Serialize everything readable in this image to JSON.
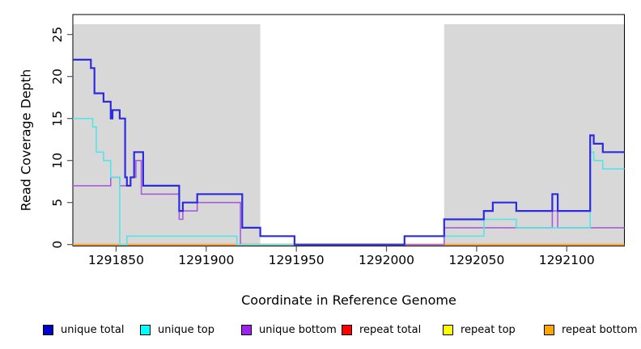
{
  "figure": {
    "xlabel": "Coordinate in Reference Genome",
    "ylabel": "Read Coverage Depth"
  },
  "chart_data": {
    "type": "line",
    "subtype": "step-after",
    "title": "",
    "xlabel": "Coordinate in Reference Genome",
    "ylabel": "Read Coverage Depth",
    "xlim": [
      1291826,
      1292132
    ],
    "ylim": [
      0,
      27
    ],
    "x_ticks": [
      1291850,
      1291900,
      1291950,
      1292000,
      1292050,
      1292100
    ],
    "y_ticks": [
      0,
      5,
      10,
      15,
      20,
      25
    ],
    "grid": false,
    "legend_position": "bottom",
    "shade_color": "#D8D8D8",
    "shaded_regions": [
      {
        "from": 1291826,
        "to": 1291930
      },
      {
        "from": 1292032,
        "to": 1292132
      }
    ],
    "series": [
      {
        "name": "unique total",
        "legend_color": "#0000CD",
        "line_color": "#2B2BE0",
        "width": 2.2,
        "z": 6,
        "steps": [
          [
            1291826,
            22
          ],
          [
            1291836,
            21
          ],
          [
            1291838,
            18
          ],
          [
            1291843,
            17
          ],
          [
            1291847,
            15
          ],
          [
            1291848,
            16
          ],
          [
            1291852,
            15
          ],
          [
            1291855,
            8
          ],
          [
            1291856,
            7
          ],
          [
            1291858,
            8
          ],
          [
            1291860,
            11
          ],
          [
            1291865,
            7
          ],
          [
            1291885,
            4
          ],
          [
            1291887,
            5
          ],
          [
            1291895,
            6
          ],
          [
            1291920,
            2
          ],
          [
            1291930,
            1
          ],
          [
            1291949,
            0
          ],
          [
            1292010,
            1
          ],
          [
            1292032,
            3
          ],
          [
            1292054,
            4
          ],
          [
            1292059,
            5
          ],
          [
            1292072,
            4
          ],
          [
            1292092,
            6
          ],
          [
            1292095,
            4
          ],
          [
            1292113,
            13
          ],
          [
            1292115,
            12
          ],
          [
            1292120,
            11
          ]
        ]
      },
      {
        "name": "unique top",
        "legend_color": "#00FFFF",
        "line_color": "#55E4E8",
        "width": 1.6,
        "z": 5,
        "steps": [
          [
            1291826,
            15
          ],
          [
            1291837,
            14
          ],
          [
            1291839,
            11
          ],
          [
            1291843,
            10
          ],
          [
            1291847,
            8
          ],
          [
            1291852,
            0
          ],
          [
            1291856,
            1
          ],
          [
            1291917,
            0
          ],
          [
            1292010,
            1
          ],
          [
            1292054,
            3
          ],
          [
            1292072,
            2
          ],
          [
            1292113,
            11
          ],
          [
            1292115,
            10
          ],
          [
            1292120,
            9
          ]
        ]
      },
      {
        "name": "unique bottom",
        "legend_color": "#A020F0",
        "line_color": "#A75CD8",
        "width": 1.6,
        "z": 4,
        "steps": [
          [
            1291826,
            7
          ],
          [
            1291847,
            8
          ],
          [
            1291852,
            7
          ],
          [
            1291858,
            8
          ],
          [
            1291861,
            10
          ],
          [
            1291864,
            6
          ],
          [
            1291885,
            3
          ],
          [
            1291887,
            4
          ],
          [
            1291895,
            5
          ],
          [
            1291919,
            0
          ],
          [
            1292032,
            2
          ],
          [
            1292092,
            4
          ],
          [
            1292095,
            2
          ]
        ]
      },
      {
        "name": "repeat total",
        "legend_color": "#FF0000",
        "line_color": "#E8465A",
        "width": 1.4,
        "z": 2,
        "steps": [
          [
            1291826,
            0
          ]
        ]
      },
      {
        "name": "repeat top",
        "legend_color": "#FFFF00",
        "line_color": "#F2F250",
        "width": 1.4,
        "z": 1,
        "steps": [
          [
            1291826,
            0
          ]
        ]
      },
      {
        "name": "repeat bottom",
        "legend_color": "#FFA500",
        "line_color": "#FF9D1E",
        "width": 2.0,
        "z": 3,
        "steps": [
          [
            1291826,
            0
          ]
        ]
      }
    ]
  }
}
